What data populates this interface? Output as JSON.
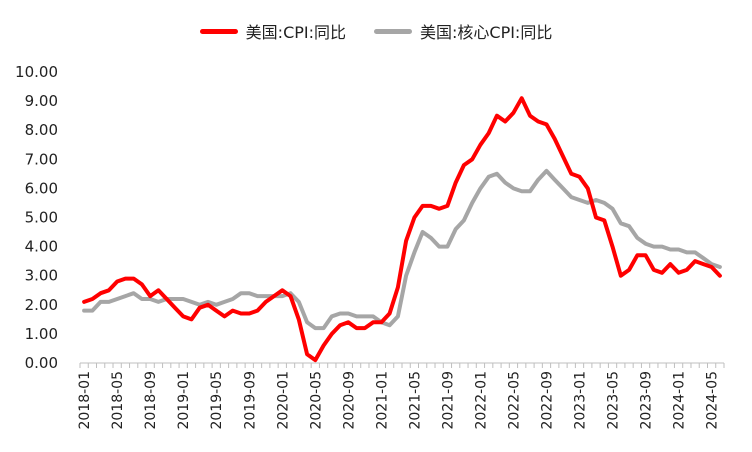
{
  "chart_data": {
    "type": "line",
    "title": "",
    "xlabel": "",
    "ylabel": "",
    "ylim": [
      0,
      10
    ],
    "yticks": [
      "0.00",
      "1.00",
      "2.00",
      "3.00",
      "4.00",
      "5.00",
      "6.00",
      "7.00",
      "8.00",
      "9.00",
      "10.00"
    ],
    "x": [
      "2018-01",
      "2018-02",
      "2018-03",
      "2018-04",
      "2018-05",
      "2018-06",
      "2018-07",
      "2018-08",
      "2018-09",
      "2018-10",
      "2018-11",
      "2018-12",
      "2019-01",
      "2019-02",
      "2019-03",
      "2019-04",
      "2019-05",
      "2019-06",
      "2019-07",
      "2019-08",
      "2019-09",
      "2019-10",
      "2019-11",
      "2019-12",
      "2020-01",
      "2020-02",
      "2020-03",
      "2020-04",
      "2020-05",
      "2020-06",
      "2020-07",
      "2020-08",
      "2020-09",
      "2020-10",
      "2020-11",
      "2020-12",
      "2021-01",
      "2021-02",
      "2021-03",
      "2021-04",
      "2021-05",
      "2021-06",
      "2021-07",
      "2021-08",
      "2021-09",
      "2021-10",
      "2021-11",
      "2021-12",
      "2022-01",
      "2022-02",
      "2022-03",
      "2022-04",
      "2022-05",
      "2022-06",
      "2022-07",
      "2022-08",
      "2022-09",
      "2022-10",
      "2022-11",
      "2022-12",
      "2023-01",
      "2023-02",
      "2023-03",
      "2023-04",
      "2023-05",
      "2023-06",
      "2023-07",
      "2023-08",
      "2023-09",
      "2023-10",
      "2023-11",
      "2023-12",
      "2024-01",
      "2024-02",
      "2024-03",
      "2024-04",
      "2024-05",
      "2024-06"
    ],
    "xtick_labels": [
      "2018-01",
      "2018-05",
      "2018-09",
      "2019-01",
      "2019-05",
      "2019-09",
      "2020-01",
      "2020-05",
      "2020-09",
      "2021-01",
      "2021-05",
      "2021-09",
      "2022-01",
      "2022-05",
      "2022-09",
      "2023-01",
      "2023-05",
      "2023-09",
      "2024-01",
      "2024-05"
    ],
    "series": [
      {
        "name": "美国:CPI:同比",
        "color": "#ff0000",
        "values": [
          2.1,
          2.2,
          2.4,
          2.5,
          2.8,
          2.9,
          2.9,
          2.7,
          2.3,
          2.5,
          2.2,
          1.9,
          1.6,
          1.5,
          1.9,
          2.0,
          1.8,
          1.6,
          1.8,
          1.7,
          1.7,
          1.8,
          2.1,
          2.3,
          2.5,
          2.3,
          1.5,
          0.3,
          0.1,
          0.6,
          1.0,
          1.3,
          1.4,
          1.2,
          1.2,
          1.4,
          1.4,
          1.7,
          2.6,
          4.2,
          5.0,
          5.4,
          5.4,
          5.3,
          5.4,
          6.2,
          6.8,
          7.0,
          7.5,
          7.9,
          8.5,
          8.3,
          8.6,
          9.1,
          8.5,
          8.3,
          8.2,
          7.7,
          7.1,
          6.5,
          6.4,
          6.0,
          5.0,
          4.9,
          4.0,
          3.0,
          3.2,
          3.7,
          3.7,
          3.2,
          3.1,
          3.4,
          3.1,
          3.2,
          3.5,
          3.4,
          3.3,
          3.0
        ]
      },
      {
        "name": "美国:核心CPI:同比",
        "color": "#a6a6a6",
        "values": [
          1.8,
          1.8,
          2.1,
          2.1,
          2.2,
          2.3,
          2.4,
          2.2,
          2.2,
          2.1,
          2.2,
          2.2,
          2.2,
          2.1,
          2.0,
          2.1,
          2.0,
          2.1,
          2.2,
          2.4,
          2.4,
          2.3,
          2.3,
          2.3,
          2.3,
          2.4,
          2.1,
          1.4,
          1.2,
          1.2,
          1.6,
          1.7,
          1.7,
          1.6,
          1.6,
          1.6,
          1.4,
          1.3,
          1.6,
          3.0,
          3.8,
          4.5,
          4.3,
          4.0,
          4.0,
          4.6,
          4.9,
          5.5,
          6.0,
          6.4,
          6.5,
          6.2,
          6.0,
          5.9,
          5.9,
          6.3,
          6.6,
          6.3,
          6.0,
          5.7,
          5.6,
          5.5,
          5.6,
          5.5,
          5.3,
          4.8,
          4.7,
          4.3,
          4.1,
          4.0,
          4.0,
          3.9,
          3.9,
          3.8,
          3.8,
          3.6,
          3.4,
          3.3
        ]
      }
    ],
    "legend_position": "top-center",
    "grid": false
  }
}
